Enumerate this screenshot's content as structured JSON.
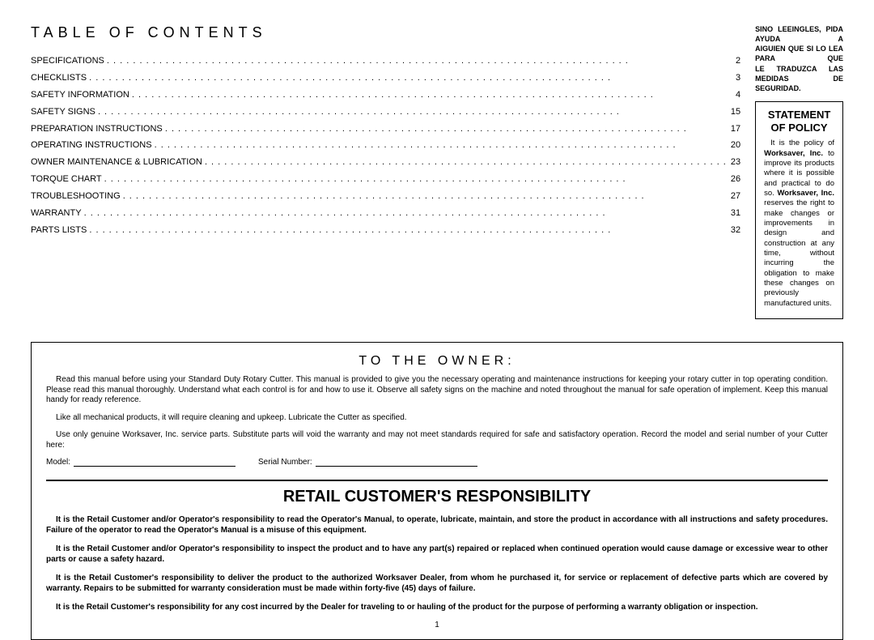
{
  "toc": {
    "title": "TABLE OF CONTENTS",
    "items": [
      {
        "label": "SPECIFICATIONS",
        "page": "2"
      },
      {
        "label": "CHECKLISTS",
        "page": "3"
      },
      {
        "label": "SAFETY INFORMATION",
        "page": "4"
      },
      {
        "label": "SAFETY SIGNS",
        "page": "15"
      },
      {
        "label": "PREPARATION INSTRUCTIONS",
        "page": "17"
      },
      {
        "label": "OPERATING INSTRUCTIONS",
        "page": "20"
      },
      {
        "label": "OWNER MAINTENANCE & LUBRICATION",
        "page": "23"
      },
      {
        "label": "TORQUE CHART",
        "page": "26"
      },
      {
        "label": "TROUBLESHOOTING",
        "page": "27"
      },
      {
        "label": "WARRANTY",
        "page": "31"
      },
      {
        "label": "PARTS LISTS",
        "page": "32"
      }
    ]
  },
  "spanish": {
    "line1": "SINO LEEINGLES, PIDA AYUDA A",
    "line2": "AIGUIEN QUE SI LO LEA PARA QUE",
    "line3": "LE TRADUZCA LAS MEDIDAS DE",
    "line4": "SEGURIDAD."
  },
  "policy": {
    "title1": "STATEMENT",
    "title2": "OF POLICY",
    "body_pre": "It is the policy of ",
    "bold1": "Worksaver, Inc.",
    "body_mid": " to improve its products where it is possible and practical to do so. ",
    "bold2": "Worksaver, Inc.",
    "body_post": " reserves the right to make changes or improvements in design and construction at any time, without incurring the obligation to make these changes on previously manufactured units."
  },
  "owner": {
    "title": "TO THE OWNER:",
    "p1": "Read this manual before using your Standard Duty Rotary Cutter. This manual is provided to give you the necessary operating and maintenance instructions for keeping your rotary cutter in top operating condition. Please read this manual thoroughly. Understand what each control is for and how to use it. Observe all safety signs on the machine and noted throughout the manual for safe operation of implement. Keep this manual handy for ready reference.",
    "p2": "Like all mechanical products, it will require cleaning and upkeep. Lubricate the Cutter as specified.",
    "p3": "Use only genuine Worksaver, Inc. service parts. Substitute parts will void the warranty and may not meet standards required for safe and satisfactory operation. Record the model and serial number of your Cutter here:",
    "model_label": "Model:",
    "serial_label": "Serial Number:"
  },
  "retail": {
    "title": "RETAIL CUSTOMER'S RESPONSIBILITY",
    "p1": "It is the Retail Customer and/or Operator's responsibility to read the Operator's Manual, to operate, lubricate, maintain, and store the product in accordance with all instructions and safety procedures. Failure of the operator to read the Operator's Manual is a misuse of this equipment.",
    "p2": "It is the Retail Customer and/or Operator's responsibility to inspect the product and to have any part(s) repaired or replaced when continued operation would cause damage or excessive wear to other parts or cause a safety hazard.",
    "p3": "It is the Retail Customer's responsibility to deliver the product to the authorized Worksaver Dealer, from whom he purchased it, for service or replacement of defective parts which are covered by warranty. Repairs to be submitted for warranty consideration must be made within forty-five (45) days of failure.",
    "p4": "It is the Retail Customer's responsibility for any cost incurred by the Dealer for traveling to or hauling of the product for the purpose of performing a warranty obligation or inspection."
  },
  "page_number": "1"
}
